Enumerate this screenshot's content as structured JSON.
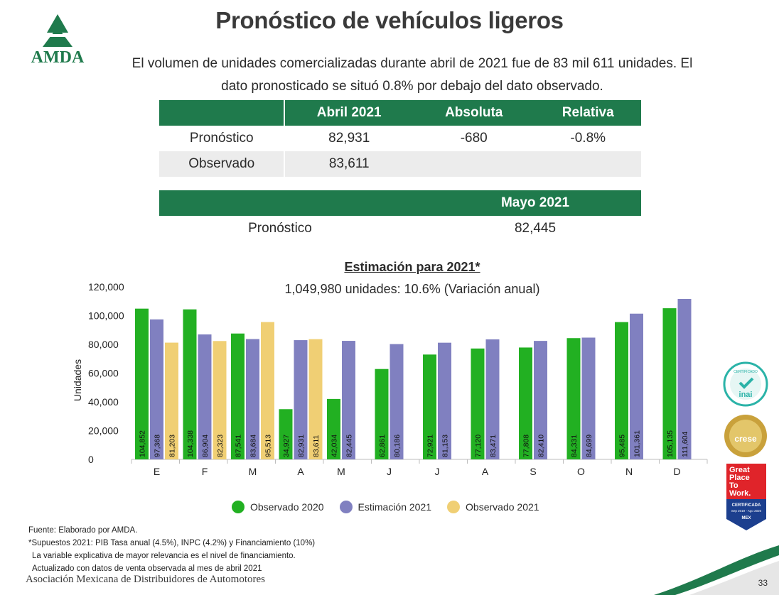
{
  "header": {
    "title": "Pronóstico de vehículos ligeros",
    "logo_text": "AMDA",
    "subtitle_line1": "El volumen de unidades comercializadas durante abril de 2021 fue de 83 mil 611 unidades. El",
    "subtitle_line2": "dato pronosticado se situó 0.8% por debajo del dato observado."
  },
  "table1": {
    "headers": [
      "",
      "Abril 2021",
      "Absoluta",
      "Relativa"
    ],
    "rows": [
      [
        "Pronóstico",
        "82,931",
        "-680",
        "-0.8%"
      ],
      [
        "Observado",
        "83,611",
        "",
        ""
      ]
    ]
  },
  "table2": {
    "header": "Mayo 2021",
    "row_label": "Pronóstico",
    "row_value": "82,445"
  },
  "chart_data": {
    "type": "bar",
    "title": "Estimación para 2021*",
    "subtitle": "1,049,980 unidades: 10.6% (Variación anual)",
    "ylabel": "Unidades",
    "ylim": [
      0,
      120000
    ],
    "yticks": [
      "0",
      "20,000",
      "40,000",
      "60,000",
      "80,000",
      "100,000",
      "120,000"
    ],
    "categories": [
      "E",
      "F",
      "M",
      "A",
      "M",
      "J",
      "J",
      "A",
      "S",
      "O",
      "N",
      "D"
    ],
    "series": [
      {
        "name": "Observado 2020",
        "color": "#22b022",
        "values": [
          104852,
          104338,
          87541,
          34927,
          42034,
          62861,
          72921,
          77120,
          77808,
          84331,
          95485,
          105135
        ],
        "labels": [
          "104,852",
          "104,338",
          "87,541",
          "34,927",
          "42,034",
          "62,861",
          "72,921",
          "77,120",
          "77,808",
          "84,331",
          "95,485",
          "105,135"
        ]
      },
      {
        "name": "Estimación 2021",
        "color": "#8080c0",
        "values": [
          97368,
          86904,
          83684,
          82931,
          82445,
          80186,
          81153,
          83471,
          82410,
          84699,
          101361,
          111604
        ],
        "labels": [
          "97,368",
          "86,904",
          "83,684",
          "82,931",
          "82,445",
          "80,186",
          "81,153",
          "83,471",
          "82,410",
          "84,699",
          "101,361",
          "111,604"
        ]
      },
      {
        "name": "Observado 2021",
        "color": "#f0cf74",
        "values": [
          81203,
          82323,
          95513,
          83611,
          null,
          null,
          null,
          null,
          null,
          null,
          null,
          null
        ],
        "labels": [
          "81,203",
          "82,323",
          "95,513",
          "83,611",
          "",
          "",
          "",
          "",
          "",
          "",
          "",
          ""
        ]
      }
    ],
    "grid": false,
    "legend_position": "bottom"
  },
  "notes": {
    "source": "Fuente: Elaborado por AMDA.",
    "assumptions": "*Supuestos 2021: PIB Tasa anual (4.5%), INPC (4.2%) y Financiamiento (10%)",
    "variable": "La variable explicativa de mayor relevancia es el nivel de financiamiento.",
    "updated": "Actualizado con datos de venta observada al mes de abril 2021"
  },
  "footer": {
    "organization": "Asociación Mexicana de Distribuidores de Automotores",
    "page_number": "33"
  },
  "badges": {
    "inai_top": "CERTIFICADO",
    "inai_name": "inai",
    "crese": "crese",
    "gptw_line1": "Great",
    "gptw_line2": "Place",
    "gptw_line3": "To",
    "gptw_line4": "Work.",
    "gptw_cert": "CERTIFICADA",
    "gptw_dates": "Sep 2019 - Ago 2020",
    "gptw_country": "MEX"
  }
}
